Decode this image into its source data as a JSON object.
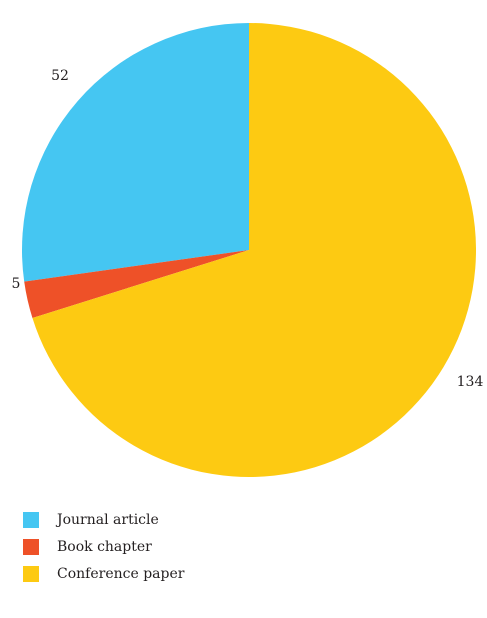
{
  "chart_data": {
    "type": "pie",
    "categories": [
      "Journal article",
      "Book chapter",
      "Conference paper"
    ],
    "values": [
      52,
      5,
      134
    ],
    "colors": [
      "#45c6f2",
      "#ee5128",
      "#fdca12"
    ],
    "data_labels": [
      "52",
      "5",
      "134"
    ],
    "legend": {
      "position": "bottom-left",
      "entries": [
        "Journal article",
        "Book chapter",
        "Conference paper"
      ]
    },
    "start_angle": "top",
    "direction": "counterclockwise"
  }
}
